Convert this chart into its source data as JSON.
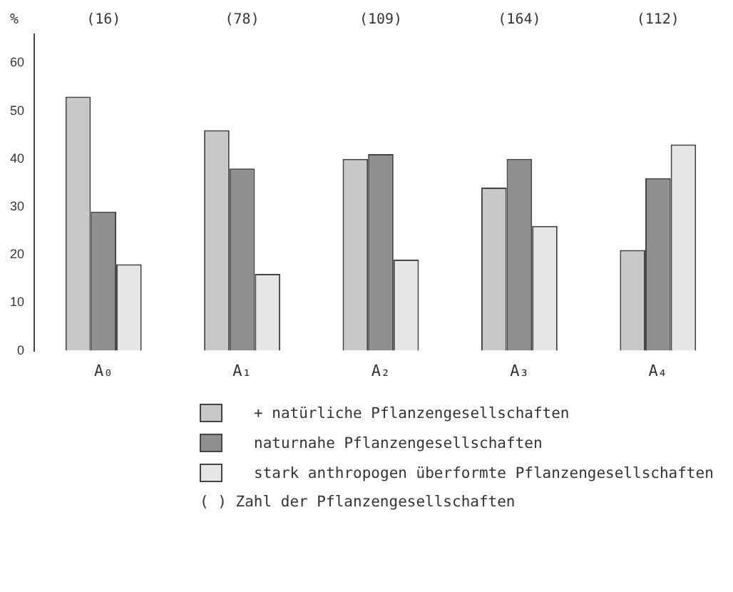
{
  "chart_data": {
    "type": "bar",
    "ylabel": "%",
    "categories": [
      "A₀",
      "A₁",
      "A₂",
      "A₃",
      "A₄"
    ],
    "series": [
      {
        "name": "+ natürliche Pflanzengesellschaften",
        "color": "#c8c8c8",
        "values": [
          53,
          46,
          40,
          34,
          21
        ]
      },
      {
        "name": "naturnahe Pflanzengesellschaften",
        "color": "#8f8f8f",
        "values": [
          29,
          38,
          41,
          40,
          36
        ]
      },
      {
        "name": "stark anthropogen überformte Pflanzengesellschaften",
        "color": "#e6e6e6",
        "values": [
          18,
          16,
          19,
          26,
          43
        ]
      }
    ],
    "ylim": [
      0,
      66
    ],
    "yticks": [
      0,
      10,
      20,
      30,
      40,
      50,
      60
    ],
    "grid": false,
    "legend": "bottom",
    "annotations": [
      "(16)",
      "(78)",
      "(109)",
      "(164)",
      "(112)",
      "( )  Zahl der Pflanzengesellschaften"
    ]
  }
}
